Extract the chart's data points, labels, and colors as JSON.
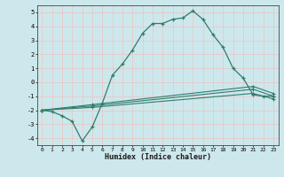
{
  "xlabel": "Humidex (Indice chaleur)",
  "background_color": "#cde8ec",
  "grid_color": "#e8c8c8",
  "line_color": "#2e7d6e",
  "xlim": [
    -0.5,
    23.5
  ],
  "ylim": [
    -4.5,
    5.5
  ],
  "yticks": [
    -4,
    -3,
    -2,
    -1,
    0,
    1,
    2,
    3,
    4,
    5
  ],
  "xticks": [
    0,
    1,
    2,
    3,
    4,
    5,
    6,
    7,
    8,
    9,
    10,
    11,
    12,
    13,
    14,
    15,
    16,
    17,
    18,
    19,
    20,
    21,
    22,
    23
  ],
  "series1_x": [
    0,
    1,
    2,
    3,
    4,
    5,
    6,
    7,
    8,
    9,
    10,
    11,
    12,
    13,
    14,
    15,
    16,
    17,
    18,
    19,
    20,
    21,
    22,
    23
  ],
  "series1_y": [
    -2.0,
    -2.1,
    -2.4,
    -2.8,
    -4.2,
    -3.2,
    -1.5,
    0.5,
    1.3,
    2.3,
    3.5,
    4.2,
    4.2,
    4.5,
    4.6,
    5.1,
    4.5,
    3.4,
    2.5,
    1.0,
    0.3,
    -0.9,
    -1.0,
    -1.0
  ],
  "series2_x": [
    0,
    5,
    21,
    23
  ],
  "series2_y": [
    -2.0,
    -1.7,
    -0.5,
    -1.0
  ],
  "series3_x": [
    0,
    5,
    21,
    23
  ],
  "series3_y": [
    -2.0,
    -1.6,
    -0.3,
    -0.8
  ],
  "series4_x": [
    0,
    5,
    21,
    23
  ],
  "series4_y": [
    -2.0,
    -1.8,
    -0.8,
    -1.2
  ]
}
